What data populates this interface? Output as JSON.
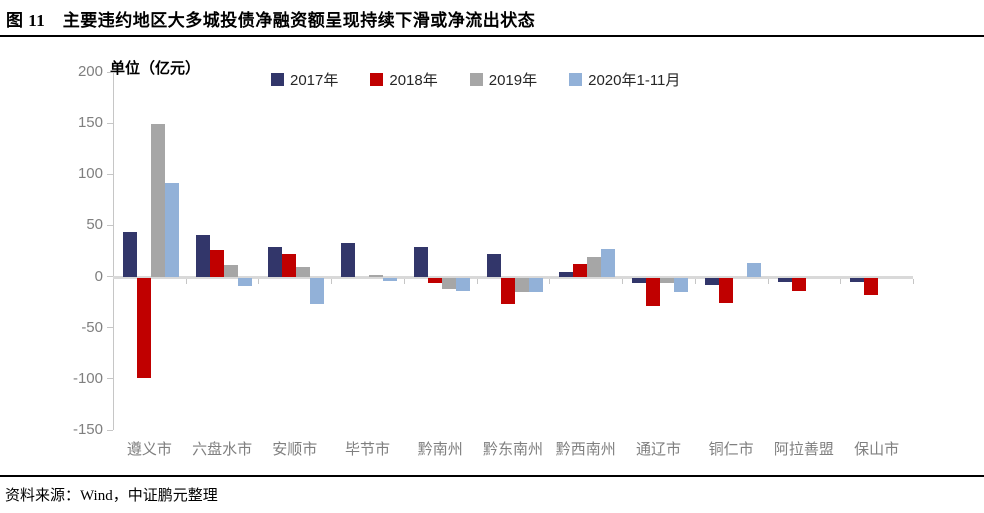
{
  "header": {
    "title": "图 11　主要违约地区大多城投债净融资额呈现持续下滑或净流出状态"
  },
  "footer": {
    "source": "资料来源：Wind，中证鹏元整理"
  },
  "chart_data": {
    "type": "bar",
    "title": "主要违约地区大多城投债净融资额呈现持续下滑或净流出状态",
    "unit_label": "单位（亿元）",
    "xlabel": "",
    "ylabel": "亿元",
    "ylim": [
      -150,
      200
    ],
    "yticks": [
      200,
      150,
      100,
      50,
      0,
      -50,
      -100,
      -150
    ],
    "grid": false,
    "legend_position": "top",
    "categories": [
      "遵义市",
      "六盘水市",
      "安顺市",
      "毕节市",
      "黔南州",
      "黔东南州",
      "黔西南州",
      "通辽市",
      "铜仁市",
      "阿拉善盟",
      "保山市"
    ],
    "series": [
      {
        "name": "2017年",
        "color": "#32366A",
        "values": [
          44,
          41,
          29,
          33,
          29,
          22,
          4,
          -5,
          -7,
          -4,
          -4
        ]
      },
      {
        "name": "2018年",
        "color": "#C00000",
        "values": [
          -98,
          26,
          22,
          0,
          -5,
          -26,
          12,
          -28,
          -25,
          -13,
          -17
        ]
      },
      {
        "name": "2019年",
        "color": "#A6A6A6",
        "values": [
          149,
          11,
          9,
          2,
          -11,
          -14,
          19,
          -5,
          0,
          0,
          0
        ]
      },
      {
        "name": "2020年1-11月",
        "color": "#92B1D8",
        "values": [
          91,
          -8,
          -26,
          -3,
          -13,
          -14,
          27,
          -14,
          13,
          0,
          0
        ]
      }
    ]
  },
  "colors": {
    "axis_line": "#c6c6c6",
    "zero_line": "#d9d9d9",
    "tick_label": "#7f7f7f",
    "title_text": "#000000"
  }
}
